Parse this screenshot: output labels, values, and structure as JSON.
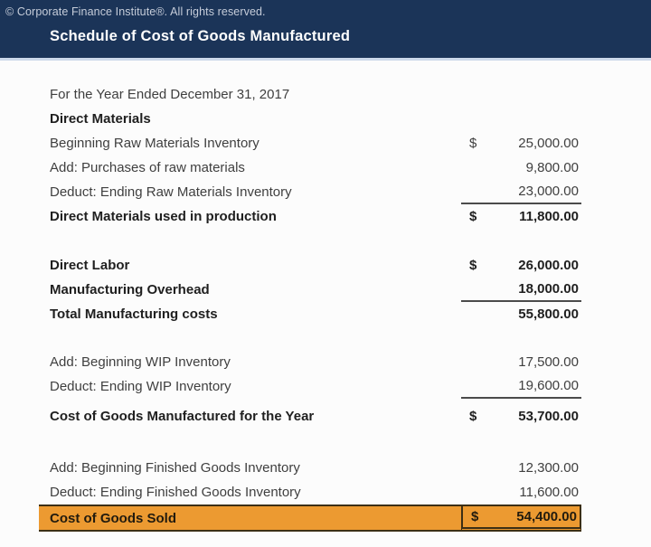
{
  "header": {
    "copyright": "© Corporate Finance Institute®. All rights reserved.",
    "title": "Schedule of Cost of Goods Manufactured"
  },
  "statement": {
    "period": "For the Year Ended December 31, 2017",
    "rows": [
      {
        "label": "Direct Materials",
        "dollar": "",
        "amount": "",
        "bold": true,
        "underline": false,
        "highlight": false,
        "gap": 0
      },
      {
        "label": "Beginning Raw Materials Inventory",
        "dollar": "$",
        "amount": "25,000.00",
        "bold": false,
        "underline": false,
        "highlight": false,
        "gap": 0
      },
      {
        "label": "Add: Purchases of raw materials",
        "dollar": "",
        "amount": "9,800.00",
        "bold": false,
        "underline": false,
        "highlight": false,
        "gap": 0
      },
      {
        "label": "Deduct: Ending Raw Materials Inventory",
        "dollar": "",
        "amount": "23,000.00",
        "bold": false,
        "underline": true,
        "highlight": false,
        "gap": 0
      },
      {
        "label": "Direct Materials used in production",
        "dollar": "$",
        "amount": "11,800.00",
        "bold": true,
        "underline": false,
        "highlight": false,
        "gap": 0
      },
      {
        "label": "Direct Labor",
        "dollar": "$",
        "amount": "26,000.00",
        "bold": true,
        "underline": false,
        "highlight": false,
        "gap": 27
      },
      {
        "label": "Manufacturing Overhead",
        "dollar": "",
        "amount": "18,000.00",
        "bold": true,
        "underline": true,
        "highlight": false,
        "gap": 0
      },
      {
        "label": "Total Manufacturing costs",
        "dollar": "",
        "amount": "55,800.00",
        "bold": true,
        "underline": false,
        "highlight": false,
        "gap": 0
      },
      {
        "label": "Add: Beginning WIP Inventory",
        "dollar": "",
        "amount": "17,500.00",
        "bold": false,
        "underline": false,
        "highlight": false,
        "gap": 26
      },
      {
        "label": "Deduct: Ending WIP Inventory",
        "dollar": "",
        "amount": "19,600.00",
        "bold": false,
        "underline": true,
        "highlight": false,
        "gap": 0
      },
      {
        "label": "Cost of Goods Manufactured for the Year",
        "dollar": "$",
        "amount": "53,700.00",
        "bold": true,
        "underline": false,
        "highlight": false,
        "gap": 6
      },
      {
        "label": "Add: Beginning Finished Goods Inventory",
        "dollar": "",
        "amount": "12,300.00",
        "bold": false,
        "underline": false,
        "highlight": false,
        "gap": 30
      },
      {
        "label": "Deduct: Ending Finished Goods Inventory",
        "dollar": "",
        "amount": "11,600.00",
        "bold": false,
        "underline": false,
        "highlight": false,
        "gap": 0
      },
      {
        "label": "Cost of Goods Sold",
        "dollar": "$",
        "amount": "54,400.00",
        "bold": true,
        "underline": false,
        "highlight": true,
        "gap": 0
      }
    ]
  },
  "colors": {
    "header_navy": "#1b3458",
    "highlight_orange": "#ec9a31",
    "divider_light_blue": "#ccd9ea",
    "text_regular": "#3f3f3f",
    "text_bold": "#1f1f1f",
    "rule_dark": "#4b4b4b"
  }
}
